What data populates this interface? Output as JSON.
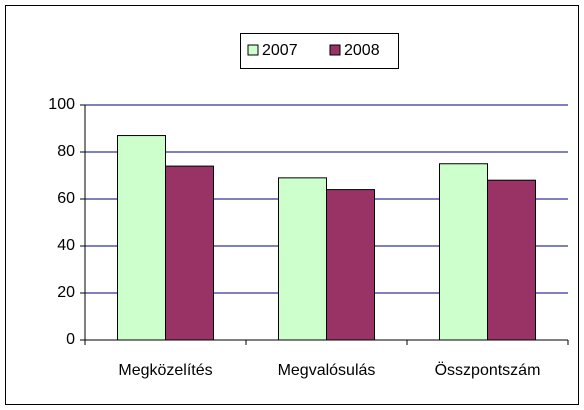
{
  "chart_data": {
    "type": "bar",
    "categories": [
      "Megközelítés",
      "Megvalósulás",
      "Összpontszám"
    ],
    "series": [
      {
        "name": "2007",
        "color": "#ccffcc",
        "values": [
          87,
          69,
          75
        ]
      },
      {
        "name": "2008",
        "color": "#993366",
        "values": [
          74,
          64,
          68
        ]
      }
    ],
    "ylim": [
      0,
      100
    ],
    "yticks": [
      0,
      20,
      40,
      60,
      80,
      100
    ],
    "grid": true,
    "legend": "top"
  }
}
